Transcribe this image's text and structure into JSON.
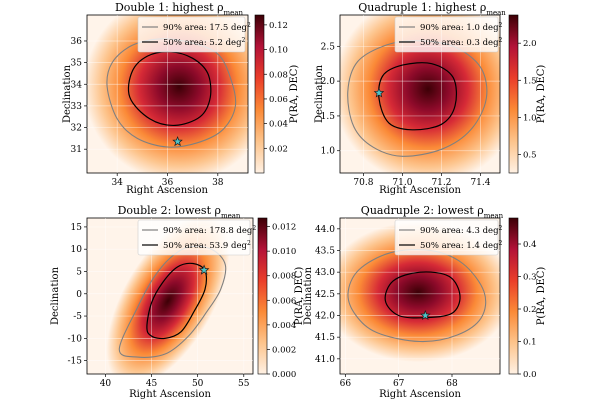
{
  "chart_data": [
    {
      "type": "heatmap",
      "title": "Double 1: highest ρ",
      "title_subscript": "mean",
      "xlabel": "Right Ascension",
      "ylabel": "Declination",
      "xlim": [
        32.8,
        39.2
      ],
      "ylim": [
        29.9,
        37.2
      ],
      "xticks": [
        34,
        36,
        38
      ],
      "yticks": [
        31,
        32,
        33,
        34,
        35,
        36
      ],
      "center": [
        36.1,
        33.7
      ],
      "contours": [
        {
          "label": "90% area: 17.5 deg",
          "color": "#808080",
          "points": [
            [
              33.6,
              33.9
            ],
            [
              33.8,
              35.0
            ],
            [
              34.6,
              35.8
            ],
            [
              35.8,
              36.1
            ],
            [
              37.0,
              35.9
            ],
            [
              38.0,
              35.4
            ],
            [
              38.5,
              34.3
            ],
            [
              38.7,
              33.0
            ],
            [
              38.2,
              31.9
            ],
            [
              37.2,
              31.3
            ],
            [
              36.0,
              31.1
            ],
            [
              34.8,
              31.5
            ],
            [
              34.0,
              32.4
            ]
          ]
        },
        {
          "label": "50% area: 5.2 deg",
          "color": "#000000",
          "points": [
            [
              34.5,
              33.4
            ],
            [
              34.6,
              34.6
            ],
            [
              35.2,
              35.3
            ],
            [
              36.1,
              35.5
            ],
            [
              37.0,
              35.2
            ],
            [
              37.6,
              34.5
            ],
            [
              37.7,
              33.4
            ],
            [
              37.3,
              32.5
            ],
            [
              36.3,
              32.1
            ],
            [
              35.3,
              32.4
            ]
          ]
        }
      ],
      "star": [
        36.4,
        31.35
      ],
      "colorbar": {
        "label": "P(RA, DEC)",
        "min": 0.0,
        "max": 0.128,
        "ticks": [
          "0.02",
          "0.04",
          "0.06",
          "0.08",
          "0.10",
          "0.12"
        ],
        "tick_values": [
          0.02,
          0.04,
          0.06,
          0.08,
          0.1,
          0.12
        ]
      }
    },
    {
      "type": "heatmap",
      "title": "Quadruple 1: highest ρ",
      "title_subscript": "mean",
      "xlabel": "Right Ascension",
      "ylabel": "Declination",
      "xlim": [
        70.68,
        71.5
      ],
      "ylim": [
        0.68,
        2.95
      ],
      "xticks": [
        70.8,
        71.0,
        71.2,
        71.4
      ],
      "xtick_labels": [
        "70.8",
        "71.0",
        "71.2",
        "71.4"
      ],
      "yticks": [
        1.0,
        1.5,
        2.0,
        2.5
      ],
      "ytick_labels": [
        "1.0",
        "1.5",
        "2.0",
        "2.5"
      ],
      "center": [
        71.07,
        1.75
      ],
      "contours": [
        {
          "label": "90% area: 1.0 deg",
          "color": "#808080",
          "points": [
            [
              70.72,
              1.85
            ],
            [
              70.77,
              2.28
            ],
            [
              70.92,
              2.52
            ],
            [
              71.08,
              2.58
            ],
            [
              71.26,
              2.5
            ],
            [
              71.4,
              2.2
            ],
            [
              71.43,
              1.75
            ],
            [
              71.35,
              1.3
            ],
            [
              71.2,
              1.02
            ],
            [
              71.0,
              0.92
            ],
            [
              70.85,
              1.05
            ],
            [
              70.75,
              1.35
            ]
          ]
        },
        {
          "label": "50% area: 0.3 deg",
          "color": "#000000",
          "points": [
            [
              70.88,
              1.75
            ],
            [
              70.9,
              2.08
            ],
            [
              71.0,
              2.23
            ],
            [
              71.15,
              2.25
            ],
            [
              71.26,
              2.05
            ],
            [
              71.27,
              1.65
            ],
            [
              71.2,
              1.38
            ],
            [
              71.05,
              1.3
            ],
            [
              70.93,
              1.4
            ]
          ]
        }
      ],
      "star": [
        70.88,
        1.83
      ],
      "colorbar": {
        "label": "P(RA, DEC)",
        "min": 0.25,
        "max": 2.38,
        "ticks": [
          "0.5",
          "1.0",
          "1.5",
          "2.0"
        ],
        "tick_values": [
          0.5,
          1.0,
          1.5,
          2.0
        ]
      }
    },
    {
      "type": "heatmap",
      "title": "Double 2: lowest ρ",
      "title_subscript": "mean",
      "xlabel": "Right Ascension",
      "ylabel": "Declination",
      "xlim": [
        38.0,
        56.0
      ],
      "ylim": [
        -18.0,
        17.0
      ],
      "xticks": [
        40,
        45,
        50,
        55
      ],
      "yticks": [
        -15,
        -10,
        -5,
        0,
        5,
        10,
        15
      ],
      "center": [
        47.5,
        -1.0
      ],
      "contours": [
        {
          "label": "90% area: 178.8 deg",
          "color": "#808080",
          "points": [
            [
              41.5,
              -12.5
            ],
            [
              43.5,
              -3.0
            ],
            [
              45.2,
              3.5
            ],
            [
              47.0,
              8.0
            ],
            [
              49.0,
              10.5
            ],
            [
              51.5,
              10.0
            ],
            [
              53.0,
              6.5
            ],
            [
              52.5,
              1.0
            ],
            [
              51.0,
              -4.0
            ],
            [
              49.0,
              -9.5
            ],
            [
              46.5,
              -13.5
            ],
            [
              43.5,
              -14.2
            ]
          ]
        },
        {
          "label": "50% area: 53.9 deg",
          "color": "#000000",
          "points": [
            [
              44.5,
              -7.5
            ],
            [
              45.0,
              -2.0
            ],
            [
              46.2,
              2.5
            ],
            [
              47.8,
              6.0
            ],
            [
              49.5,
              6.8
            ],
            [
              50.8,
              5.2
            ],
            [
              50.8,
              1.0
            ],
            [
              49.6,
              -4.0
            ],
            [
              48.2,
              -8.5
            ],
            [
              46.5,
              -10.0
            ],
            [
              45.0,
              -9.5
            ]
          ]
        }
      ],
      "star": [
        50.7,
        5.3
      ],
      "colorbar": {
        "label": "P(RA, DEC)",
        "min": 0.0,
        "max": 0.0127,
        "ticks": [
          "0.000",
          "0.002",
          "0.004",
          "0.006",
          "0.008",
          "0.010",
          "0.012"
        ],
        "tick_values": [
          0.0,
          0.002,
          0.004,
          0.006,
          0.008,
          0.01,
          0.012
        ]
      }
    },
    {
      "type": "heatmap",
      "title": "Quadruple 2: lowest ρ",
      "title_subscript": "mean",
      "xlabel": "Right Ascension",
      "ylabel": "Declination",
      "xlim": [
        65.9,
        68.9
      ],
      "ylim": [
        40.65,
        44.25
      ],
      "xticks": [
        66,
        67,
        68
      ],
      "yticks": [
        41.0,
        41.5,
        42.0,
        42.5,
        43.0,
        43.5,
        44.0
      ],
      "ytick_labels": [
        "41.0",
        "41.5",
        "42.0",
        "42.5",
        "43.0",
        "43.5",
        "44.0"
      ],
      "center": [
        67.4,
        42.45
      ],
      "contours": [
        {
          "label": "90% area: 4.3 deg",
          "color": "#808080",
          "points": [
            [
              66.05,
              42.5
            ],
            [
              66.25,
              43.05
            ],
            [
              66.85,
              43.45
            ],
            [
              67.6,
              43.5
            ],
            [
              68.2,
              43.2
            ],
            [
              68.6,
              42.55
            ],
            [
              68.55,
              41.95
            ],
            [
              68.1,
              41.55
            ],
            [
              67.4,
              41.4
            ],
            [
              66.6,
              41.6
            ],
            [
              66.2,
              42.0
            ]
          ]
        },
        {
          "label": "50% area: 1.4 deg",
          "color": "#000000",
          "points": [
            [
              66.75,
              42.35
            ],
            [
              66.9,
              42.8
            ],
            [
              67.4,
              43.0
            ],
            [
              67.95,
              42.9
            ],
            [
              68.15,
              42.45
            ],
            [
              68.0,
              42.05
            ],
            [
              67.5,
              41.95
            ],
            [
              67.0,
              42.0
            ]
          ]
        }
      ],
      "star": [
        67.5,
        42.0
      ],
      "colorbar": {
        "label": "P(RA, DEC)",
        "min": 0.0,
        "max": 0.48,
        "ticks": [
          "0.0",
          "0.1",
          "0.2",
          "0.3",
          "0.4"
        ],
        "tick_values": [
          0.0,
          0.1,
          0.2,
          0.3,
          0.4
        ]
      }
    }
  ],
  "legend_superscript": "2",
  "colors": {
    "contour90": "#808080",
    "contour50": "#000000",
    "star": "#4fc3c8"
  }
}
